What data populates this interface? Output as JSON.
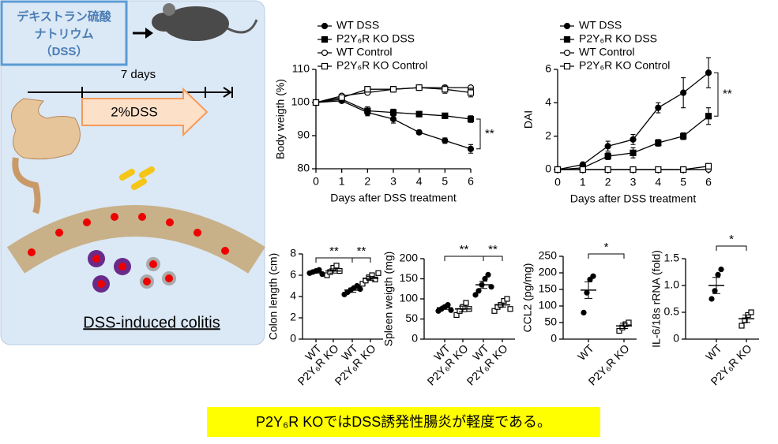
{
  "illustration": {
    "reagent_lines": [
      "デキストラン硫酸",
      "ナトリウム",
      "（DSS）"
    ],
    "duration": "7 days",
    "treatment": "2%DSS",
    "result": "DSS-induced colitis"
  },
  "caption": "P2Y₆R KOではDSS誘発性腸炎が軽度である。",
  "chart_data": [
    {
      "type": "line",
      "xlabel": "Days after DSS treatment",
      "ylabel": "Body weigth (%)",
      "x": [
        0,
        1,
        2,
        3,
        4,
        5,
        6
      ],
      "xlim": [
        0,
        6
      ],
      "xticks": [
        0,
        1,
        2,
        3,
        4,
        5,
        6
      ],
      "ylim": [
        80,
        110
      ],
      "yticks": [
        80,
        90,
        100,
        110
      ],
      "series": [
        {
          "name": "WT DSS",
          "color": "#000000",
          "marker": "circle",
          "filled": true,
          "values": [
            100,
            100.5,
            97,
            95,
            91,
            88.5,
            86
          ],
          "errors": [
            0,
            0.5,
            1,
            1.2,
            0.6,
            0.8,
            1.3
          ]
        },
        {
          "name": "P2Y₆R KO DSS",
          "color": "#000000",
          "marker": "square",
          "filled": true,
          "values": [
            100,
            101,
            97.5,
            97,
            96.5,
            96,
            95
          ],
          "errors": [
            0,
            0.5,
            1.2,
            1,
            0.8,
            0.7,
            1
          ]
        },
        {
          "name": "WT Control",
          "color": "#000000",
          "marker": "circle",
          "filled": false,
          "values": [
            100,
            102,
            103,
            104,
            104.5,
            104.5,
            104.5
          ],
          "errors": [
            0,
            0.5,
            0.6,
            0.8,
            0.5,
            0.6,
            0.5
          ]
        },
        {
          "name": "P2Y₆R KO Control",
          "color": "#000000",
          "marker": "square",
          "filled": false,
          "values": [
            100,
            101.5,
            104,
            104,
            104.5,
            104,
            103
          ],
          "errors": [
            0,
            0.5,
            0.8,
            0.8,
            0.7,
            1.2,
            1.3
          ]
        }
      ],
      "annotations": [
        "**"
      ]
    },
    {
      "type": "line",
      "xlabel": "Days after DSS treatment",
      "ylabel": "DAI",
      "x": [
        0,
        1,
        2,
        3,
        4,
        5,
        6
      ],
      "xlim": [
        0,
        6
      ],
      "xticks": [
        0,
        1,
        2,
        3,
        4,
        5,
        6
      ],
      "ylim": [
        0,
        6
      ],
      "yticks": [
        0,
        2,
        4,
        6
      ],
      "series": [
        {
          "name": "WT DSS",
          "color": "#000000",
          "marker": "circle",
          "filled": true,
          "values": [
            0,
            0.3,
            1.4,
            1.8,
            3.7,
            4.6,
            5.8
          ],
          "errors": [
            0,
            0.1,
            0.3,
            0.3,
            0.3,
            0.9,
            0.9
          ]
        },
        {
          "name": "P2Y₆R KO DSS",
          "color": "#000000",
          "marker": "square",
          "filled": true,
          "values": [
            0,
            0.1,
            0.8,
            1,
            1.6,
            2,
            3.2
          ],
          "errors": [
            0,
            0.1,
            0.2,
            0.3,
            0.2,
            0.2,
            0.5
          ]
        },
        {
          "name": "WT Control",
          "color": "#000000",
          "marker": "circle",
          "filled": false,
          "values": [
            0,
            0,
            0,
            0,
            0,
            0,
            0
          ],
          "errors": [
            0,
            0,
            0,
            0,
            0,
            0,
            0
          ]
        },
        {
          "name": "P2Y₆R KO Control",
          "color": "#000000",
          "marker": "square",
          "filled": false,
          "values": [
            0,
            0,
            0,
            0,
            0,
            0,
            0.2
          ],
          "errors": [
            0,
            0,
            0,
            0,
            0,
            0,
            0.1
          ]
        }
      ],
      "annotations": [
        "**"
      ]
    },
    {
      "type": "dot",
      "ylabel": "Colon length (cm)",
      "categories": [
        "WT",
        "P2Y₆R KO",
        "WT",
        "P2Y₆R KO"
      ],
      "ylim": [
        0,
        8
      ],
      "yticks": [
        0,
        2,
        4,
        6,
        8
      ],
      "markers": [
        "circle-filled",
        "square-open",
        "circle-filled",
        "square-open"
      ],
      "points": [
        [
          6.2,
          6.3,
          6.4,
          6.5,
          6.1
        ],
        [
          6,
          6.3,
          6.7,
          6.9,
          6.4
        ],
        [
          4.2,
          4.4,
          4.6,
          4.8,
          5,
          4.7
        ],
        [
          5.2,
          5.5,
          5.8,
          6,
          5.6,
          6.2
        ]
      ],
      "means": [
        6.3,
        6.4,
        4.6,
        5.7
      ],
      "errors": [
        0.1,
        0.2,
        0.2,
        0.2
      ],
      "annotations": [
        "**",
        "**"
      ]
    },
    {
      "type": "dot",
      "ylabel": "Spleen weigth (mg)",
      "categories": [
        "WT",
        "P2Y₆R KO",
        "WT",
        "P2Y₆R KO"
      ],
      "ylim": [
        0,
        200
      ],
      "yticks": [
        0,
        50,
        100,
        150,
        200
      ],
      "markers": [
        "circle-filled",
        "square-open",
        "circle-filled",
        "square-open"
      ],
      "points": [
        [
          70,
          75,
          80,
          85,
          72
        ],
        [
          60,
          70,
          80,
          90,
          75
        ],
        [
          110,
          120,
          135,
          150,
          160,
          130
        ],
        [
          70,
          80,
          85,
          95,
          100,
          75
        ]
      ],
      "means": [
        78,
        75,
        135,
        85
      ],
      "errors": [
        4,
        7,
        9,
        5
      ],
      "annotations": [
        "**",
        "**"
      ]
    },
    {
      "type": "dot",
      "ylabel": "CCL2 (pg/mg)",
      "categories": [
        "WT",
        "P2Y₆R KO"
      ],
      "ylim": [
        0,
        250
      ],
      "yticks": [
        0,
        50,
        100,
        150,
        200,
        250
      ],
      "markers": [
        "circle-filled",
        "square-open"
      ],
      "points": [
        [
          80,
          140,
          180,
          190
        ],
        [
          25,
          35,
          45,
          50
        ]
      ],
      "means": [
        148,
        40
      ],
      "errors": [
        25,
        8
      ],
      "annotations": [
        "*"
      ]
    },
    {
      "type": "dot",
      "ylabel": "IL-6/18s rRNA (fold)",
      "categories": [
        "WT",
        "P2Y₆R KO"
      ],
      "ylim": [
        0,
        1.5
      ],
      "yticks": [
        0,
        0.5,
        {
          "value": 1,
          "label": "1.0"
        },
        1.5
      ],
      "markers": [
        "circle-filled",
        "square-open"
      ],
      "points": [
        [
          0.75,
          0.9,
          1.2,
          1.3
        ],
        [
          0.25,
          0.35,
          0.45,
          0.5
        ]
      ],
      "means": [
        1,
        0.38
      ],
      "errors": [
        0.15,
        0.07
      ],
      "annotations": [
        "*"
      ]
    }
  ]
}
